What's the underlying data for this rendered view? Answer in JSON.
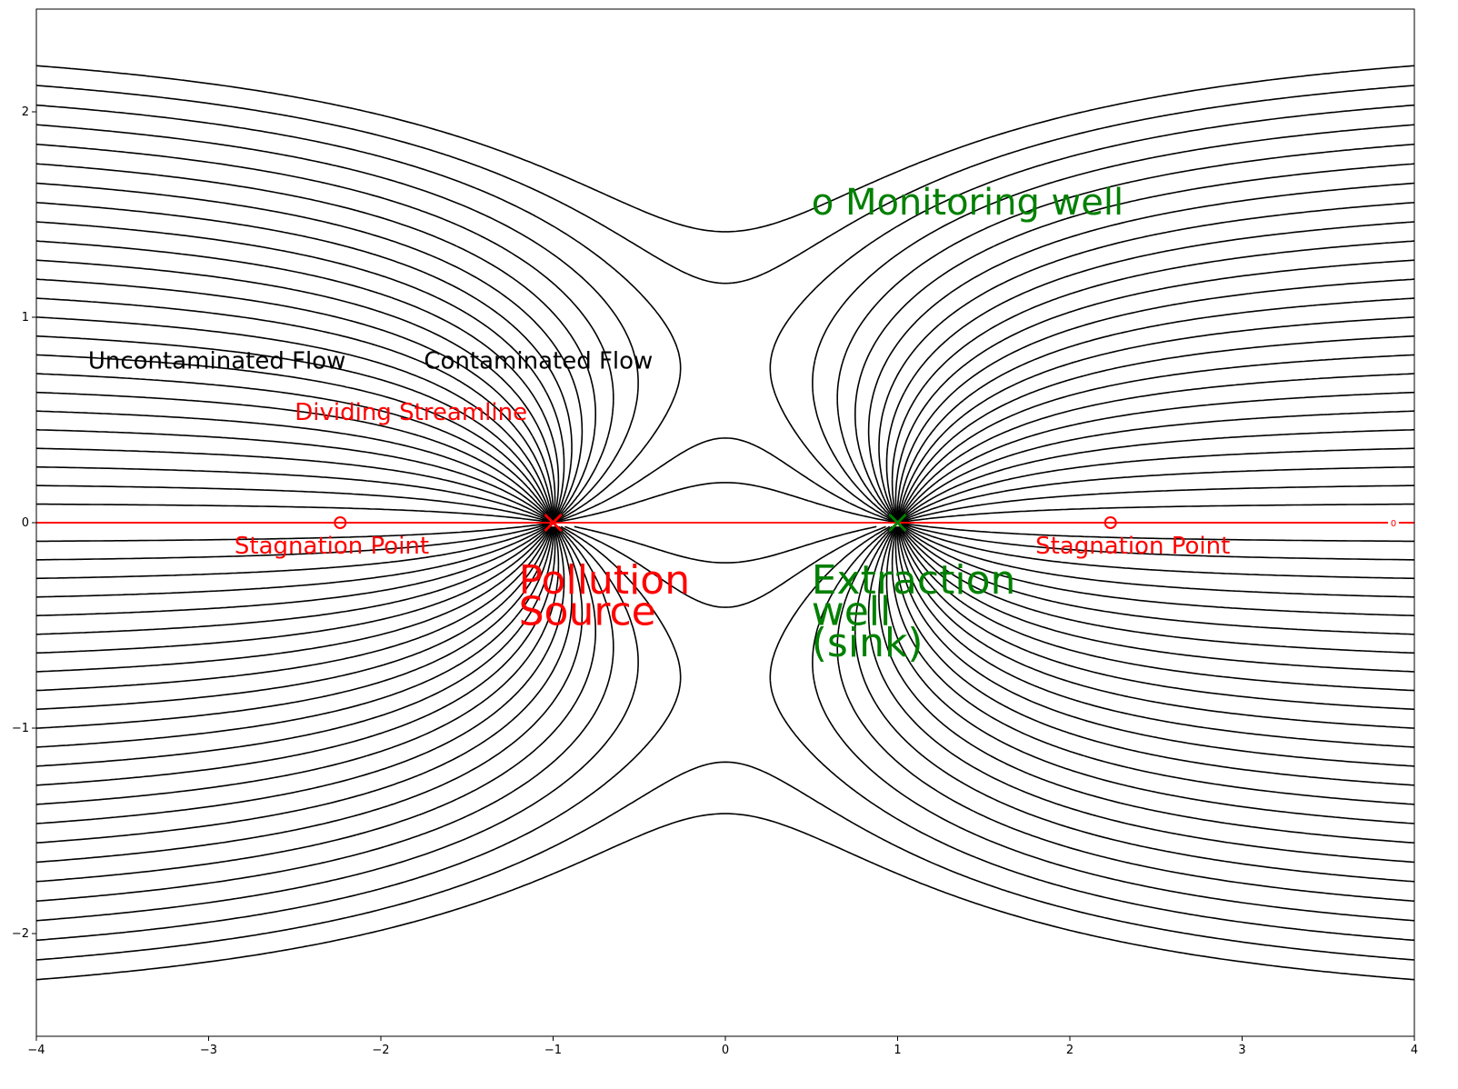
{
  "chart_data": {
    "type": "contour",
    "title": "",
    "xlabel": "",
    "ylabel": "",
    "xlim": [
      -4,
      4
    ],
    "ylim": [
      -2.5,
      2.5
    ],
    "x_ticks": [
      -4,
      -3,
      -2,
      -1,
      0,
      1,
      2,
      3,
      4
    ],
    "y_ticks": [
      -2,
      -1,
      0,
      1,
      2
    ],
    "x_tick_labels": [
      "−4",
      "−3",
      "−2",
      "−1",
      "0",
      "1",
      "2",
      "3",
      "4"
    ],
    "y_tick_labels": [
      "−2",
      "−1",
      "0",
      "1",
      "2"
    ],
    "grid": false,
    "source": {
      "x": -1,
      "y": 0,
      "marker": "x",
      "color": "#ff0000"
    },
    "sink": {
      "x": 1,
      "y": 0,
      "marker": "x",
      "color": "#008000"
    },
    "stagnation_points": [
      {
        "x": -2.236,
        "y": 0
      },
      {
        "x": 2.236,
        "y": 0
      }
    ],
    "dividing_streamline": {
      "color": "#ff0000",
      "inline_label": "0"
    },
    "annotations": [
      {
        "id": "monitoring-well",
        "text": "o Monitoring well",
        "x": 0.5,
        "y": 1.5,
        "color": "#008000"
      },
      {
        "id": "uncontaminated-flow",
        "text": "Uncontaminated Flow",
        "x": -3.7,
        "y": 0.75,
        "color": "#000000"
      },
      {
        "id": "contaminated-flow",
        "text": "Contaminated Flow",
        "x": -1.75,
        "y": 0.75,
        "color": "#000000"
      },
      {
        "id": "dividing-streamline",
        "text": "Dividing Streamline",
        "x": -2.5,
        "y": 0.5,
        "color": "#ff0000"
      },
      {
        "id": "stagnation-left",
        "text": "Stagnation Point",
        "x": -2.85,
        "y": -0.15,
        "color": "#ff0000"
      },
      {
        "id": "stagnation-right",
        "text": "Stagnation Point",
        "x": 1.8,
        "y": -0.15,
        "color": "#ff0000"
      },
      {
        "id": "pollution-source",
        "lines": [
          "Pollution",
          "Source"
        ],
        "x": -1.2,
        "y": -0.2,
        "color": "#ff0000"
      },
      {
        "id": "extraction-well",
        "lines": [
          "Extraction",
          "well",
          "(sink)"
        ],
        "x": 0.5,
        "y": -0.2,
        "color": "#008000"
      }
    ]
  }
}
